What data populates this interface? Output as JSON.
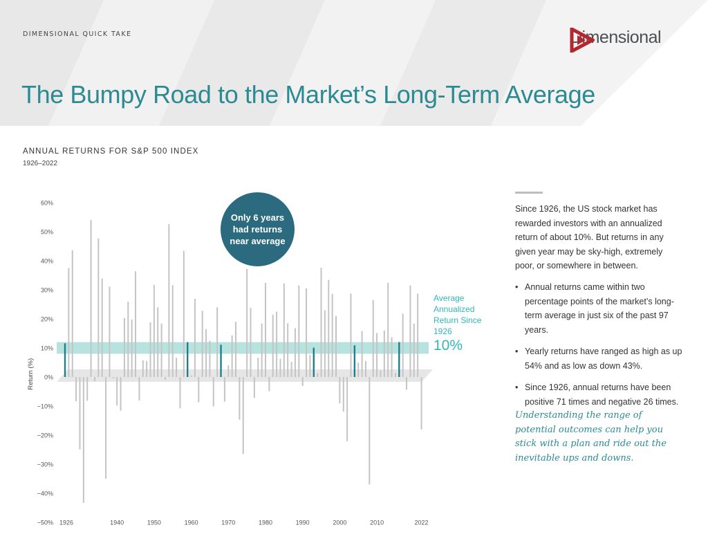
{
  "header": {
    "kicker": "DIMENSIONAL QUICK TAKE",
    "logo_text": "Dimensional",
    "title": "The Bumpy Road to the Market’s Long-Term Average"
  },
  "chart_data": {
    "type": "bar",
    "title": "ANNUAL RETURNS FOR S&P 500 INDEX",
    "subtitle": "1926–2022",
    "ylabel": "Return (%)",
    "xlabel": "",
    "ylim": [
      -50,
      60
    ],
    "y_ticks": [
      "60%",
      "50%",
      "40%",
      "30%",
      "20%",
      "10%",
      "0%",
      "−10%",
      "−20%",
      "−30%",
      "−40%",
      "−50%"
    ],
    "x_ticks": [
      "1926",
      "1940",
      "1950",
      "1960",
      "1970",
      "1980",
      "1990",
      "2000",
      "2010",
      "2022"
    ],
    "x_tick_years": [
      1926,
      1940,
      1950,
      1960,
      1970,
      1980,
      1990,
      2000,
      2010,
      2022
    ],
    "start_year": 1926,
    "values": [
      11.6,
      37.5,
      43.6,
      -8.4,
      -24.9,
      -43.3,
      -8.2,
      54.0,
      -1.4,
      47.7,
      33.9,
      -35.0,
      31.1,
      -0.4,
      -9.8,
      -11.6,
      20.3,
      25.9,
      19.8,
      36.4,
      -8.1,
      5.7,
      5.5,
      18.8,
      31.7,
      24.0,
      18.4,
      -1.0,
      52.6,
      31.6,
      6.6,
      -10.8,
      43.4,
      12.0,
      0.5,
      26.9,
      -8.7,
      22.8,
      16.5,
      12.5,
      -10.1,
      24.0,
      11.1,
      -8.5,
      4.0,
      14.3,
      19.0,
      -14.7,
      -26.5,
      37.2,
      23.8,
      -7.2,
      6.6,
      18.4,
      32.4,
      -4.9,
      21.4,
      22.5,
      6.3,
      32.2,
      18.5,
      5.2,
      16.8,
      31.5,
      -3.1,
      30.5,
      7.6,
      10.1,
      1.3,
      37.6,
      23.0,
      33.4,
      28.6,
      21.0,
      -9.1,
      -11.9,
      -22.1,
      28.7,
      10.9,
      4.9,
      15.8,
      5.5,
      -37.0,
      26.5,
      15.1,
      2.1,
      16.0,
      32.4,
      13.7,
      1.4,
      12.0,
      21.8,
      -4.4,
      31.5,
      18.4,
      28.7,
      -18.1
    ],
    "near_average_years": [
      1926,
      1959,
      1968,
      1993,
      2004,
      2016
    ],
    "average": {
      "value": 10,
      "label": "Average Annualized Return Since 1926",
      "value_label": "10%"
    },
    "callout": "Only 6 years had returns near average",
    "colors": {
      "bar": "#c4c4c4",
      "highlight": "#1f7f8e",
      "band": "#9ed9d6",
      "callout": "#2c6b7f",
      "title": "#2c8b92"
    },
    "grid": false
  },
  "sidebar": {
    "intro": "Since 1926, the US stock market has rewarded investors with an annualized return of about 10%. But returns in any given year may be sky-high, extremely poor, or somewhere in between.",
    "bullets": [
      "Annual returns came within two percentage points of the market’s long-term average in just six of the past 97 years.",
      "Yearly returns have ranged as high as up 54% and as low as down 43%.",
      "Since 1926, annual returns have been positive 71 times and negative 26 times."
    ],
    "closing": "Understanding the range of potential outcomes can help you stick with a plan and ride out the inevitable ups and downs."
  }
}
